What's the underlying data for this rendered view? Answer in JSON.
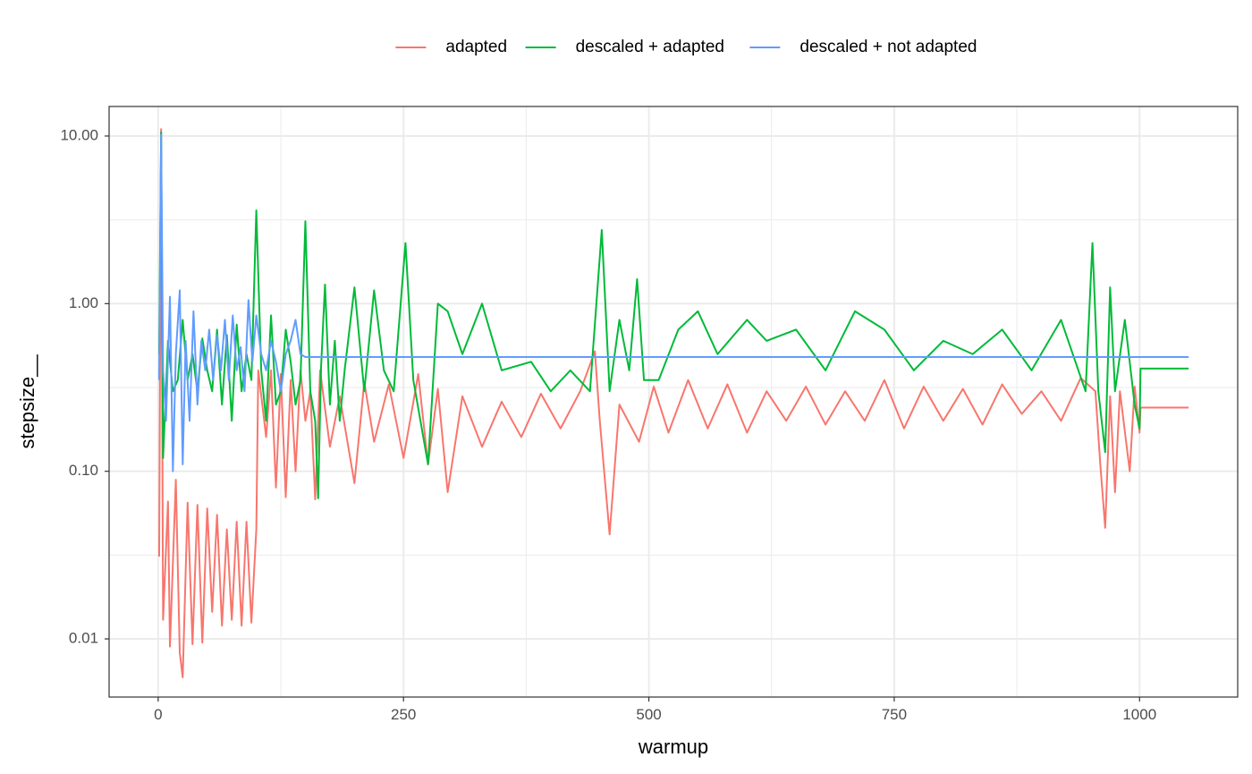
{
  "chart_data": {
    "type": "line",
    "title": "",
    "xlabel": "warmup",
    "ylabel": "stepsize__",
    "x_scale": "linear",
    "y_scale": "log10",
    "xlim": [
      -50,
      1100
    ],
    "ylim": [
      0.0045,
      15
    ],
    "x_ticks": [
      0,
      250,
      500,
      750,
      1000
    ],
    "x_tick_labels": [
      "0",
      "250",
      "500",
      "750",
      "1000"
    ],
    "y_ticks": [
      0.01,
      0.1,
      1,
      10
    ],
    "y_tick_labels": [
      "0.01",
      "0.10",
      "1.00",
      "10.00"
    ],
    "grid": true,
    "legend_position": "top",
    "series": [
      {
        "name": "adapted",
        "color": "#F8766D",
        "points": [
          [
            1,
            0.031
          ],
          [
            3,
            11.0
          ],
          [
            5,
            0.013
          ],
          [
            10,
            0.066
          ],
          [
            12,
            0.009
          ],
          [
            18,
            0.089
          ],
          [
            22,
            0.0083
          ],
          [
            25,
            0.0059
          ],
          [
            30,
            0.065
          ],
          [
            35,
            0.0093
          ],
          [
            40,
            0.063
          ],
          [
            45,
            0.0095
          ],
          [
            50,
            0.06
          ],
          [
            55,
            0.0145
          ],
          [
            60,
            0.055
          ],
          [
            65,
            0.012
          ],
          [
            70,
            0.045
          ],
          [
            75,
            0.013
          ],
          [
            80,
            0.05
          ],
          [
            85,
            0.012
          ],
          [
            90,
            0.05
          ],
          [
            95,
            0.0125
          ],
          [
            100,
            0.045
          ],
          [
            102,
            0.4
          ],
          [
            110,
            0.16
          ],
          [
            115,
            0.4
          ],
          [
            120,
            0.08
          ],
          [
            125,
            0.38
          ],
          [
            130,
            0.07
          ],
          [
            135,
            0.35
          ],
          [
            140,
            0.1
          ],
          [
            145,
            0.4
          ],
          [
            150,
            0.2
          ],
          [
            155,
            0.3
          ],
          [
            160,
            0.068
          ],
          [
            165,
            0.4
          ],
          [
            175,
            0.14
          ],
          [
            185,
            0.28
          ],
          [
            200,
            0.085
          ],
          [
            210,
            0.34
          ],
          [
            220,
            0.15
          ],
          [
            235,
            0.33
          ],
          [
            250,
            0.12
          ],
          [
            265,
            0.38
          ],
          [
            275,
            0.11
          ],
          [
            285,
            0.31
          ],
          [
            295,
            0.075
          ],
          [
            310,
            0.28
          ],
          [
            330,
            0.14
          ],
          [
            350,
            0.26
          ],
          [
            370,
            0.16
          ],
          [
            390,
            0.29
          ],
          [
            410,
            0.18
          ],
          [
            430,
            0.3
          ],
          [
            445,
            0.52
          ],
          [
            450,
            0.2
          ],
          [
            460,
            0.042
          ],
          [
            470,
            0.25
          ],
          [
            490,
            0.15
          ],
          [
            505,
            0.32
          ],
          [
            520,
            0.17
          ],
          [
            540,
            0.35
          ],
          [
            560,
            0.18
          ],
          [
            580,
            0.33
          ],
          [
            600,
            0.17
          ],
          [
            620,
            0.3
          ],
          [
            640,
            0.2
          ],
          [
            660,
            0.32
          ],
          [
            680,
            0.19
          ],
          [
            700,
            0.3
          ],
          [
            720,
            0.2
          ],
          [
            740,
            0.35
          ],
          [
            760,
            0.18
          ],
          [
            780,
            0.32
          ],
          [
            800,
            0.2
          ],
          [
            820,
            0.31
          ],
          [
            840,
            0.19
          ],
          [
            860,
            0.33
          ],
          [
            880,
            0.22
          ],
          [
            900,
            0.3
          ],
          [
            920,
            0.2
          ],
          [
            940,
            0.36
          ],
          [
            955,
            0.3
          ],
          [
            960,
            0.11
          ],
          [
            965,
            0.046
          ],
          [
            970,
            0.28
          ],
          [
            975,
            0.075
          ],
          [
            980,
            0.3
          ],
          [
            990,
            0.1
          ],
          [
            995,
            0.32
          ],
          [
            1000,
            0.17
          ],
          [
            1001,
            0.24
          ],
          [
            1050,
            0.24
          ]
        ]
      },
      {
        "name": "descaled + adapted",
        "color": "#00BA38",
        "points": [
          [
            1,
            0.5
          ],
          [
            3,
            10.5
          ],
          [
            5,
            0.12
          ],
          [
            10,
            0.6
          ],
          [
            15,
            0.3
          ],
          [
            20,
            0.35
          ],
          [
            25,
            0.8
          ],
          [
            30,
            0.35
          ],
          [
            35,
            0.5
          ],
          [
            40,
            0.3
          ],
          [
            45,
            0.62
          ],
          [
            50,
            0.4
          ],
          [
            55,
            0.3
          ],
          [
            60,
            0.7
          ],
          [
            65,
            0.25
          ],
          [
            70,
            0.65
          ],
          [
            75,
            0.2
          ],
          [
            80,
            0.75
          ],
          [
            85,
            0.3
          ],
          [
            90,
            0.5
          ],
          [
            95,
            0.35
          ],
          [
            100,
            3.6
          ],
          [
            105,
            0.4
          ],
          [
            110,
            0.2
          ],
          [
            115,
            0.85
          ],
          [
            120,
            0.25
          ],
          [
            125,
            0.3
          ],
          [
            130,
            0.7
          ],
          [
            135,
            0.45
          ],
          [
            140,
            0.25
          ],
          [
            145,
            0.35
          ],
          [
            150,
            3.1
          ],
          [
            155,
            0.3
          ],
          [
            160,
            0.2
          ],
          [
            163,
            0.069
          ],
          [
            166,
            0.42
          ],
          [
            170,
            1.3
          ],
          [
            175,
            0.25
          ],
          [
            180,
            0.6
          ],
          [
            185,
            0.2
          ],
          [
            190,
            0.4
          ],
          [
            200,
            1.25
          ],
          [
            210,
            0.3
          ],
          [
            220,
            1.2
          ],
          [
            230,
            0.4
          ],
          [
            240,
            0.3
          ],
          [
            252,
            2.3
          ],
          [
            260,
            0.35
          ],
          [
            275,
            0.11
          ],
          [
            285,
            1.0
          ],
          [
            295,
            0.9
          ],
          [
            310,
            0.5
          ],
          [
            330,
            1.0
          ],
          [
            350,
            0.4
          ],
          [
            380,
            0.45
          ],
          [
            400,
            0.3
          ],
          [
            420,
            0.4
          ],
          [
            440,
            0.3
          ],
          [
            452,
            2.75
          ],
          [
            460,
            0.3
          ],
          [
            470,
            0.8
          ],
          [
            480,
            0.4
          ],
          [
            488,
            1.4
          ],
          [
            495,
            0.35
          ],
          [
            510,
            0.35
          ],
          [
            530,
            0.7
          ],
          [
            550,
            0.9
          ],
          [
            570,
            0.5
          ],
          [
            600,
            0.8
          ],
          [
            620,
            0.6
          ],
          [
            650,
            0.7
          ],
          [
            680,
            0.4
          ],
          [
            710,
            0.9
          ],
          [
            740,
            0.7
          ],
          [
            770,
            0.4
          ],
          [
            800,
            0.6
          ],
          [
            830,
            0.5
          ],
          [
            860,
            0.7
          ],
          [
            890,
            0.4
          ],
          [
            920,
            0.8
          ],
          [
            945,
            0.3
          ],
          [
            952,
            2.3
          ],
          [
            958,
            0.3
          ],
          [
            965,
            0.13
          ],
          [
            970,
            1.25
          ],
          [
            975,
            0.3
          ],
          [
            985,
            0.8
          ],
          [
            995,
            0.25
          ],
          [
            1000,
            0.18
          ],
          [
            1001,
            0.41
          ],
          [
            1050,
            0.41
          ]
        ]
      },
      {
        "name": "descaled + not adapted",
        "color": "#619CFF",
        "points": [
          [
            1,
            0.35
          ],
          [
            3,
            10.2
          ],
          [
            5,
            0.4
          ],
          [
            8,
            0.2
          ],
          [
            12,
            1.1
          ],
          [
            15,
            0.1
          ],
          [
            18,
            0.5
          ],
          [
            22,
            1.2
          ],
          [
            25,
            0.11
          ],
          [
            28,
            0.6
          ],
          [
            32,
            0.2
          ],
          [
            36,
            0.9
          ],
          [
            40,
            0.25
          ],
          [
            44,
            0.6
          ],
          [
            48,
            0.4
          ],
          [
            52,
            0.7
          ],
          [
            56,
            0.35
          ],
          [
            60,
            0.65
          ],
          [
            64,
            0.4
          ],
          [
            68,
            0.8
          ],
          [
            72,
            0.35
          ],
          [
            76,
            0.85
          ],
          [
            80,
            0.4
          ],
          [
            84,
            0.55
          ],
          [
            88,
            0.3
          ],
          [
            92,
            1.05
          ],
          [
            96,
            0.45
          ],
          [
            100,
            0.85
          ],
          [
            105,
            0.5
          ],
          [
            110,
            0.4
          ],
          [
            115,
            0.6
          ],
          [
            120,
            0.45
          ],
          [
            125,
            0.3
          ],
          [
            130,
            0.5
          ],
          [
            135,
            0.6
          ],
          [
            140,
            0.8
          ],
          [
            145,
            0.5
          ],
          [
            150,
            0.48
          ],
          [
            1050,
            0.48
          ]
        ]
      }
    ]
  }
}
